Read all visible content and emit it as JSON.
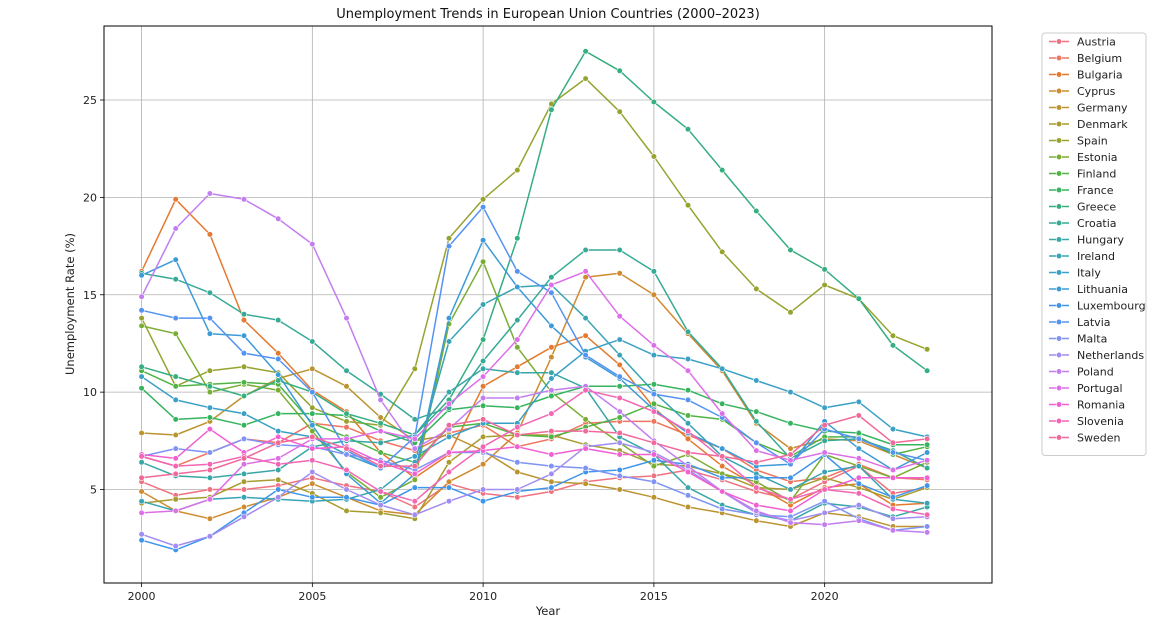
{
  "chart_data": {
    "type": "line",
    "title": "Unemployment Trends in European Union Countries (2000–2023)",
    "xlabel": "Year",
    "ylabel": "Unemployment Rate (%)",
    "xlim": [
      1998.9,
      2024.9
    ],
    "ylim": [
      0.2,
      28.8
    ],
    "xticks": [
      2000,
      2005,
      2010,
      2015,
      2020
    ],
    "yticks": [
      5,
      10,
      15,
      20,
      25
    ],
    "grid": true,
    "legend": "outside right, upper",
    "x": [
      2000,
      2001,
      2002,
      2003,
      2004,
      2005,
      2006,
      2007,
      2008,
      2009,
      2010,
      2011,
      2012,
      2013,
      2014,
      2015,
      2016,
      2017,
      2018,
      2019,
      2020,
      2021,
      2022,
      2023
    ],
    "series": [
      {
        "name": "Austria",
        "color": "#f0717f",
        "values": [
          5.4,
          4.7,
          5.0,
          5.0,
          5.2,
          5.6,
          5.2,
          4.9,
          4.1,
          5.3,
          4.8,
          4.6,
          4.9,
          5.4,
          5.6,
          5.7,
          6.0,
          5.5,
          4.9,
          4.5,
          5.4,
          6.2,
          4.8,
          5.1
        ]
      },
      {
        "name": "Belgium",
        "color": "#ef7560",
        "values": [
          6.7,
          6.2,
          6.9,
          7.6,
          7.4,
          8.4,
          8.2,
          7.5,
          7.0,
          7.9,
          8.3,
          7.2,
          7.6,
          8.4,
          8.5,
          8.5,
          7.8,
          7.1,
          6.0,
          5.4,
          5.6,
          6.3,
          5.6,
          5.5
        ]
      },
      {
        "name": "Bulgaria",
        "color": "#e5792f",
        "values": [
          16.2,
          19.9,
          18.1,
          13.7,
          12.0,
          10.1,
          9.0,
          6.9,
          5.6,
          6.8,
          10.3,
          11.3,
          12.3,
          12.9,
          11.4,
          9.2,
          7.6,
          6.2,
          5.2,
          4.2,
          5.1,
          5.3,
          4.2,
          4.3
        ]
      },
      {
        "name": "Cyprus",
        "color": "#cf8b2f",
        "values": [
          4.9,
          3.9,
          3.5,
          4.1,
          4.6,
          5.3,
          4.6,
          3.9,
          3.7,
          5.4,
          6.3,
          7.9,
          11.8,
          15.9,
          16.1,
          15.0,
          13.0,
          11.1,
          8.4,
          7.1,
          7.6,
          7.5,
          6.8,
          6.1
        ]
      },
      {
        "name": "Germany",
        "color": "#bb942f",
        "values": [
          7.9,
          7.8,
          8.5,
          9.8,
          10.7,
          11.2,
          10.3,
          8.7,
          7.5,
          7.8,
          7.0,
          5.9,
          5.4,
          5.3,
          5.0,
          4.6,
          4.1,
          3.8,
          3.4,
          3.1,
          3.8,
          3.6,
          3.1,
          3.1
        ]
      },
      {
        "name": "Denmark",
        "color": "#a79c2f",
        "values": [
          4.3,
          4.5,
          4.6,
          5.4,
          5.5,
          4.8,
          3.9,
          3.8,
          3.5,
          6.4,
          7.7,
          7.8,
          7.8,
          7.3,
          7.0,
          6.3,
          6.2,
          5.8,
          5.1,
          5.0,
          5.6,
          5.1,
          4.5,
          5.1
        ]
      },
      {
        "name": "Spain",
        "color": "#97a32f",
        "values": [
          13.8,
          10.3,
          11.1,
          11.3,
          11.0,
          9.2,
          8.5,
          8.3,
          11.2,
          17.9,
          19.9,
          21.4,
          24.8,
          26.1,
          24.4,
          22.1,
          19.6,
          17.2,
          15.3,
          14.1,
          15.5,
          14.8,
          12.9,
          12.2
        ]
      },
      {
        "name": "Estonia",
        "color": "#7aad33",
        "values": [
          13.4,
          13.0,
          10.0,
          10.4,
          10.1,
          8.0,
          5.9,
          4.6,
          5.5,
          13.5,
          16.7,
          12.3,
          10.0,
          8.6,
          7.4,
          6.2,
          6.8,
          5.8,
          5.4,
          4.4,
          6.8,
          6.2,
          5.6,
          6.4
        ]
      },
      {
        "name": "Finland",
        "color": "#4fb443",
        "values": [
          11.1,
          10.3,
          10.4,
          10.5,
          10.4,
          8.4,
          7.7,
          6.9,
          6.4,
          8.2,
          8.4,
          7.8,
          7.7,
          8.2,
          8.7,
          9.4,
          8.8,
          8.6,
          7.4,
          6.7,
          7.7,
          7.7,
          6.8,
          7.2
        ]
      },
      {
        "name": "France",
        "color": "#37b45f",
        "values": [
          10.2,
          8.6,
          8.7,
          8.3,
          8.9,
          8.9,
          8.8,
          8.0,
          7.4,
          9.1,
          9.3,
          9.2,
          9.8,
          10.3,
          10.3,
          10.4,
          10.1,
          9.4,
          9.0,
          8.4,
          8.0,
          7.9,
          7.3,
          7.3
        ]
      },
      {
        "name": "Greece",
        "color": "#35ae80",
        "values": [
          11.3,
          10.8,
          10.3,
          9.8,
          10.6,
          10.0,
          8.9,
          8.4,
          7.8,
          9.6,
          12.7,
          17.9,
          24.5,
          27.5,
          26.5,
          24.9,
          23.5,
          21.4,
          19.3,
          17.3,
          16.3,
          14.8,
          12.4,
          11.1
        ]
      },
      {
        "name": "Croatia",
        "color": "#36aa96",
        "values": [
          16.1,
          15.8,
          15.1,
          14.0,
          13.7,
          12.6,
          11.1,
          9.9,
          8.6,
          9.2,
          11.6,
          13.7,
          15.9,
          17.3,
          17.3,
          16.2,
          13.1,
          11.2,
          8.5,
          6.6,
          7.5,
          7.6,
          7.0,
          6.1
        ]
      },
      {
        "name": "Hungary",
        "color": "#38a7a6",
        "values": [
          6.4,
          5.7,
          5.6,
          5.8,
          6.0,
          7.2,
          7.5,
          7.4,
          7.8,
          10.0,
          11.2,
          11.0,
          11.0,
          10.2,
          7.7,
          6.8,
          5.1,
          4.2,
          3.7,
          3.4,
          4.3,
          4.1,
          3.6,
          4.1
        ]
      },
      {
        "name": "Ireland",
        "color": "#39a4b5",
        "values": [
          4.4,
          3.9,
          4.5,
          4.6,
          4.5,
          4.4,
          4.5,
          5.0,
          6.4,
          12.6,
          14.5,
          15.4,
          15.5,
          13.8,
          11.9,
          10.0,
          8.4,
          6.7,
          5.8,
          5.0,
          5.9,
          6.2,
          4.5,
          4.3
        ]
      },
      {
        "name": "Italy",
        "color": "#3aa0c6",
        "values": [
          10.8,
          9.6,
          9.2,
          8.9,
          8.0,
          7.7,
          6.8,
          6.1,
          6.7,
          7.7,
          8.4,
          8.4,
          10.7,
          12.1,
          12.7,
          11.9,
          11.7,
          11.2,
          10.6,
          10.0,
          9.2,
          9.5,
          8.1,
          7.7
        ]
      },
      {
        "name": "Lithuania",
        "color": "#3c9bd7",
        "values": [
          16.0,
          16.8,
          13.0,
          12.9,
          10.9,
          8.3,
          5.8,
          4.3,
          5.8,
          13.8,
          17.8,
          15.4,
          13.4,
          11.8,
          10.7,
          9.1,
          7.9,
          7.1,
          6.2,
          6.3,
          8.5,
          7.1,
          6.0,
          6.9
        ]
      },
      {
        "name": "Luxembourg",
        "color": "#3f95ea",
        "values": [
          2.4,
          1.9,
          2.6,
          3.8,
          5.0,
          4.6,
          4.6,
          4.2,
          5.1,
          5.1,
          4.4,
          4.9,
          5.1,
          5.9,
          6.0,
          6.5,
          6.3,
          5.6,
          5.6,
          5.6,
          6.8,
          5.3,
          4.6,
          5.2
        ]
      },
      {
        "name": "Latvia",
        "color": "#5493f1",
        "values": [
          14.2,
          13.8,
          13.8,
          12.0,
          11.7,
          10.0,
          7.0,
          6.1,
          7.7,
          17.5,
          19.5,
          16.2,
          15.1,
          11.9,
          10.8,
          9.9,
          9.6,
          8.7,
          7.4,
          6.3,
          8.1,
          7.6,
          6.9,
          6.5
        ]
      },
      {
        "name": "Malta",
        "color": "#7e93f4",
        "values": [
          6.7,
          7.1,
          6.9,
          7.6,
          7.3,
          7.2,
          6.8,
          6.5,
          6.0,
          6.9,
          6.9,
          6.4,
          6.2,
          6.1,
          5.7,
          5.4,
          4.7,
          4.0,
          3.7,
          3.6,
          4.4,
          3.5,
          2.9,
          3.1
        ]
      },
      {
        "name": "Netherlands",
        "color": "#a18cf4",
        "values": [
          2.7,
          2.1,
          2.6,
          3.6,
          4.6,
          5.9,
          5.0,
          4.2,
          3.7,
          4.4,
          5.0,
          5.0,
          5.8,
          7.2,
          7.4,
          6.9,
          6.0,
          4.9,
          3.8,
          3.4,
          3.8,
          4.2,
          3.5,
          3.6
        ]
      },
      {
        "name": "Poland",
        "color": "#c27ef0",
        "values": [
          14.9,
          18.4,
          20.2,
          19.9,
          18.9,
          17.6,
          13.8,
          9.6,
          7.1,
          8.1,
          9.7,
          9.7,
          10.1,
          10.3,
          9.0,
          7.5,
          6.2,
          4.9,
          3.9,
          3.3,
          3.2,
          3.4,
          2.9,
          2.8
        ]
      },
      {
        "name": "Portugal",
        "color": "#dd6fe8",
        "values": [
          3.8,
          3.9,
          4.5,
          6.3,
          6.6,
          7.6,
          7.6,
          8.0,
          7.6,
          9.4,
          10.8,
          12.7,
          15.5,
          16.2,
          13.9,
          12.4,
          11.1,
          8.9,
          7.0,
          6.5,
          6.9,
          6.6,
          6.0,
          6.5
        ]
      },
      {
        "name": "Romania",
        "color": "#f160d3",
        "values": [
          6.8,
          6.6,
          8.1,
          6.9,
          7.7,
          7.1,
          7.2,
          6.4,
          5.8,
          6.9,
          7.0,
          7.2,
          6.8,
          7.1,
          6.8,
          6.8,
          5.9,
          4.9,
          4.2,
          3.9,
          5.0,
          5.6,
          5.6,
          5.6
        ]
      },
      {
        "name": "Slovenia",
        "color": "#f266b4",
        "values": [
          6.7,
          6.2,
          6.3,
          6.7,
          6.3,
          6.5,
          6.0,
          4.9,
          4.4,
          5.9,
          7.2,
          8.2,
          8.9,
          10.1,
          9.7,
          9.0,
          8.0,
          6.6,
          5.1,
          4.5,
          5.0,
          4.8,
          4.0,
          3.7
        ]
      },
      {
        "name": "Sweden",
        "color": "#f0699a",
        "values": [
          5.6,
          5.8,
          6.0,
          6.6,
          7.4,
          7.7,
          7.1,
          6.2,
          6.2,
          8.3,
          8.6,
          7.8,
          8.0,
          8.0,
          7.9,
          7.4,
          6.9,
          6.7,
          6.4,
          6.8,
          8.3,
          8.8,
          7.4,
          7.6
        ]
      }
    ]
  }
}
